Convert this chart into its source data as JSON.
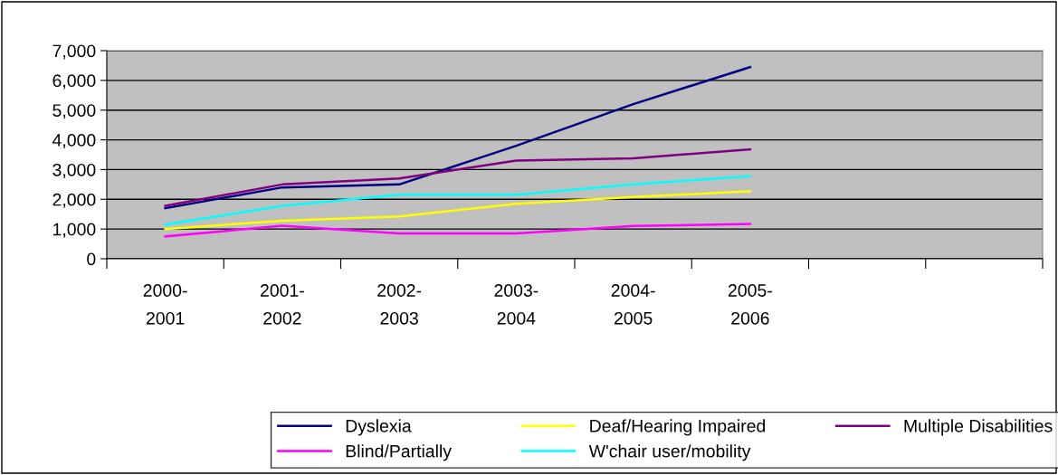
{
  "chart_data": {
    "type": "line",
    "categories": [
      "2000-\n2001",
      "2001-\n2002",
      "2002-\n2003",
      "2003-\n2004",
      "2004-\n2005",
      "2005-\n2006",
      null,
      null
    ],
    "series": [
      {
        "name": "Dyslexia",
        "color": "#000080",
        "values": [
          1700,
          2400,
          2500,
          3800,
          5200,
          6450,
          null,
          null
        ]
      },
      {
        "name": "Blind/Partially",
        "color": "#ff00ff",
        "values": [
          750,
          1110,
          850,
          850,
          1100,
          1170,
          null,
          null
        ]
      },
      {
        "name": "Deaf/Hearing Impaired",
        "color": "#ffff00",
        "values": [
          1000,
          1280,
          1420,
          1850,
          2080,
          2270,
          null,
          null
        ]
      },
      {
        "name": "W'chair user/mobility",
        "color": "#00ffff",
        "values": [
          1150,
          1780,
          2150,
          2150,
          2500,
          2780,
          null,
          null
        ]
      },
      {
        "name": "Multiple Disabilities",
        "color": "#800080",
        "values": [
          1780,
          2500,
          2700,
          3300,
          3380,
          3680,
          null,
          null
        ]
      }
    ],
    "ylim": [
      0,
      7000
    ],
    "yticks": [
      {
        "value": 0,
        "label": "0"
      },
      {
        "value": 1000,
        "label": "1,000"
      },
      {
        "value": 2000,
        "label": "2,000"
      },
      {
        "value": 3000,
        "label": "3,000"
      },
      {
        "value": 4000,
        "label": "4,000"
      },
      {
        "value": 5000,
        "label": "5,000"
      },
      {
        "value": 6000,
        "label": "6,000"
      },
      {
        "value": 7000,
        "label": "7,000"
      }
    ],
    "grid": "y",
    "legend": "bottom",
    "marker": "none",
    "line_style": "solid"
  }
}
